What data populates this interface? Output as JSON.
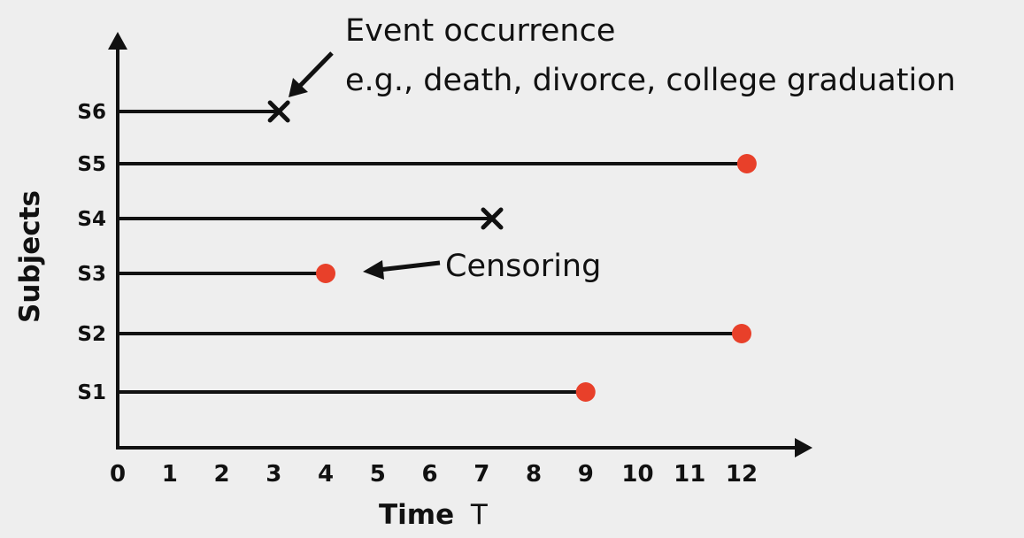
{
  "diagram": {
    "x_axis": {
      "title": "Time",
      "title_symbol": "T",
      "ticks": [
        "0",
        "1",
        "2",
        "3",
        "4",
        "5",
        "6",
        "7",
        "8",
        "9",
        "10",
        "11",
        "12"
      ],
      "range": [
        0,
        13
      ]
    },
    "y_axis": {
      "title": "Subjects"
    },
    "subjects": [
      {
        "label": "S6",
        "end": 3.1,
        "outcome": "event"
      },
      {
        "label": "S5",
        "end": 12.1,
        "outcome": "censored"
      },
      {
        "label": "S4",
        "end": 7.2,
        "outcome": "event"
      },
      {
        "label": "S3",
        "end": 4.0,
        "outcome": "censored"
      },
      {
        "label": "S2",
        "end": 12.0,
        "outcome": "censored"
      },
      {
        "label": "S1",
        "end": 9.0,
        "outcome": "censored"
      }
    ],
    "annotations": {
      "event_title": "Event occurrence",
      "event_examples": "e.g., death, divorce, college graduation",
      "censoring": "Censoring"
    },
    "colors": {
      "axis": "#111111",
      "censor_marker": "#e8402a",
      "background": "#eeeeee"
    }
  }
}
